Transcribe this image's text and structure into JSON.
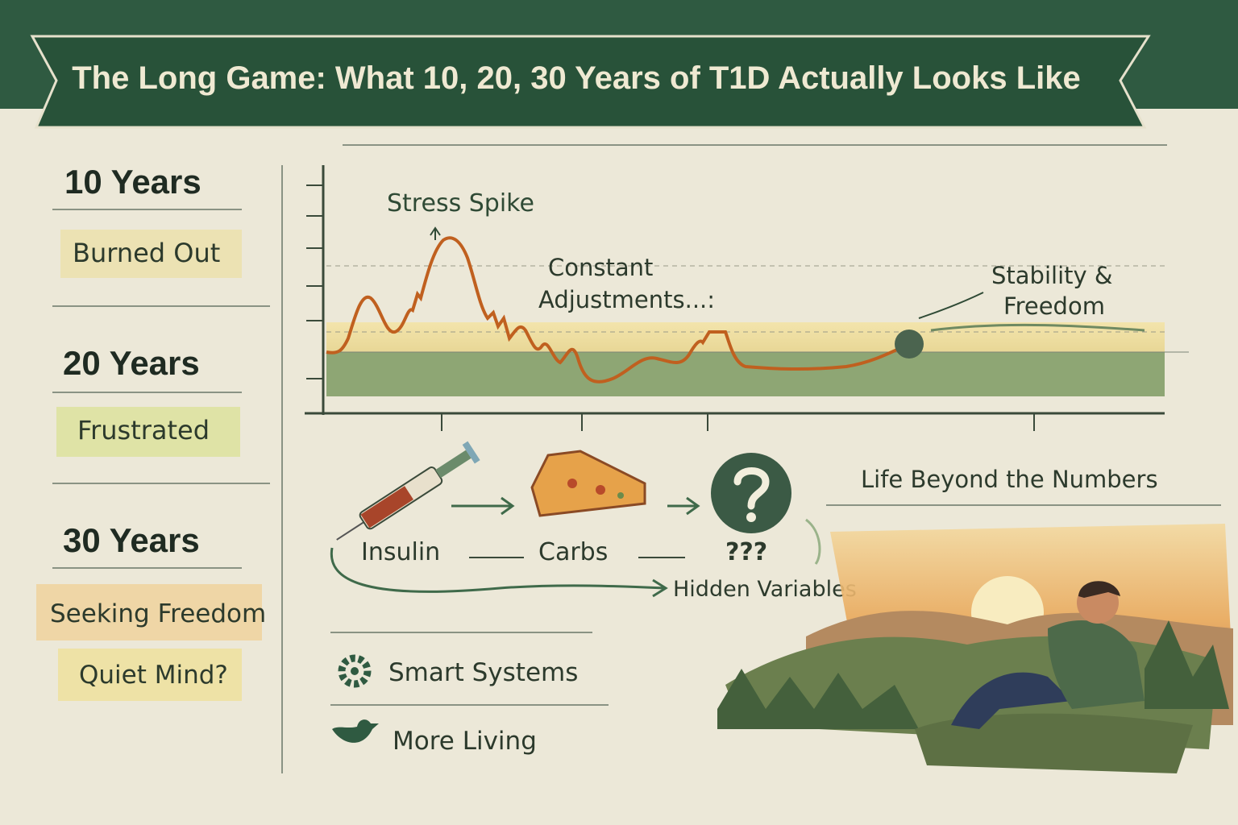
{
  "header": {
    "title": "The Long Game: What 10, 20, 30 Years of T1D Actually Looks Like"
  },
  "timeline": [
    {
      "period": "10 Years",
      "feeling": "Burned Out"
    },
    {
      "period": "20 Years",
      "feeling": "Frustrated"
    },
    {
      "period": "30 Years",
      "feeling": "Seeking Freedom"
    }
  ],
  "closing_note": "Quiet Mind?",
  "curve_annotations": [
    {
      "lines": [
        "Stress Spike"
      ]
    },
    {
      "lines": [
        "Constant",
        "Adjustments...:"
      ]
    },
    {
      "lines": [
        "Stability &",
        "Freedom"
      ]
    }
  ],
  "flow": {
    "steps": [
      "Insulin",
      "Carbs",
      "???"
    ],
    "hidden": "Hidden Variables"
  },
  "scene_caption": "Life Beyond the Numbers",
  "features": [
    "Smart Systems",
    "More Living"
  ]
}
